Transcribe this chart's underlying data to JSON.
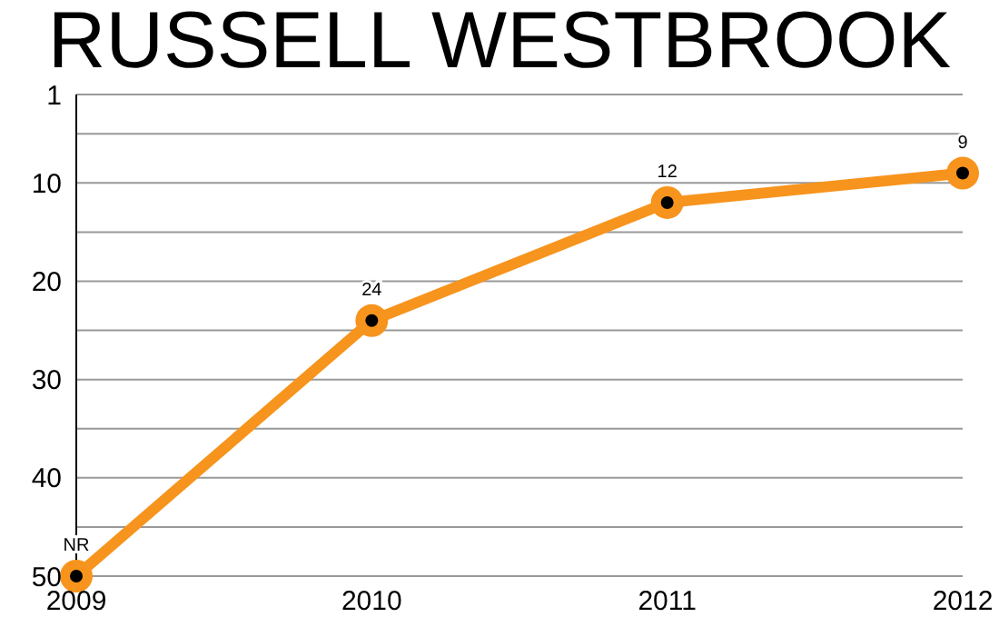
{
  "chart_data": {
    "type": "line",
    "title": "RUSSELL WESTBROOK",
    "x": [
      2009,
      2010,
      2011,
      2012
    ],
    "xlim": [
      2009,
      2012
    ],
    "xticks": [
      2009,
      2010,
      2011,
      2012
    ],
    "ylim": [
      50,
      1
    ],
    "yticks": [
      1,
      {
        "value": 5,
        "label": null
      },
      10,
      {
        "value": 15,
        "label": null
      },
      20,
      {
        "value": 25,
        "label": null
      },
      30,
      {
        "value": 35,
        "label": null
      },
      40,
      {
        "value": 45,
        "label": null
      },
      50
    ],
    "series": [
      {
        "color": "#f7941d",
        "values": [
          50,
          24,
          12,
          9
        ],
        "value_labels": [
          "NR",
          "24",
          "12",
          "9"
        ]
      }
    ],
    "grid": "y",
    "marker": "circle",
    "line_style": "solid",
    "legend": false
  }
}
